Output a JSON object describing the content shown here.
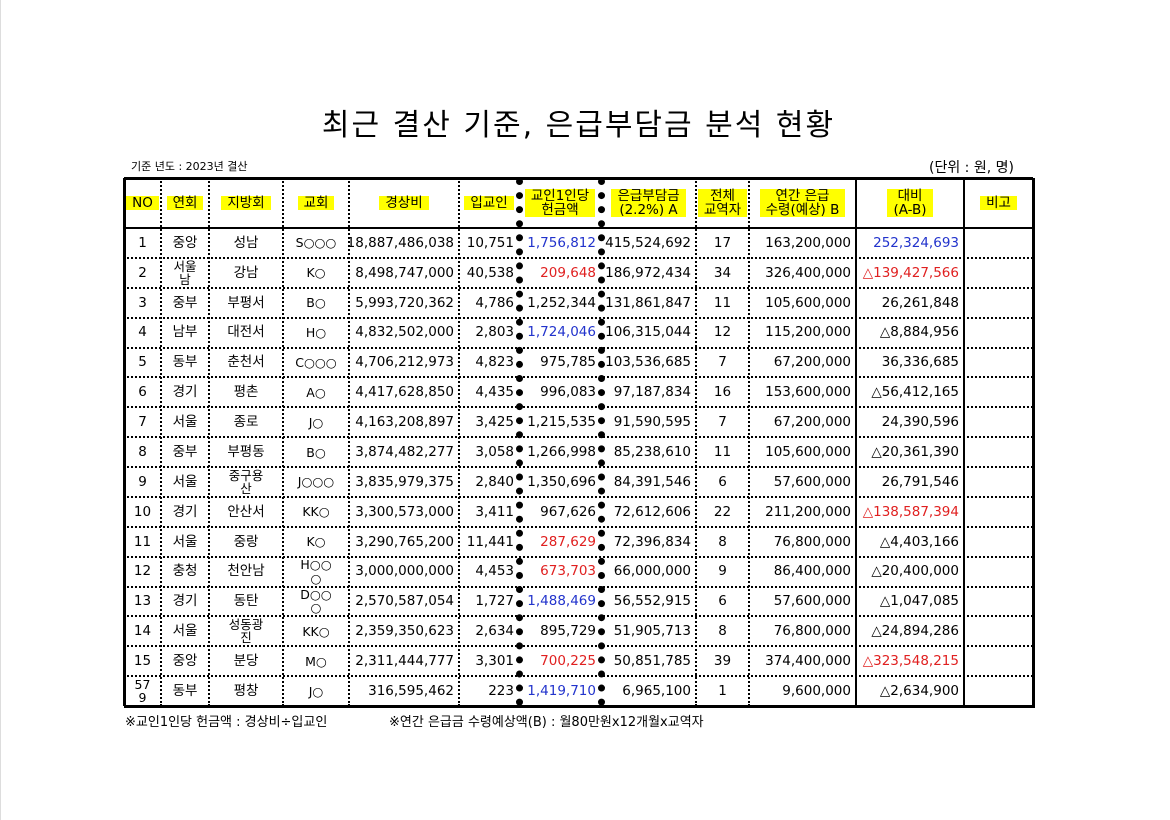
{
  "header": {
    "title": "최근 결산 기준, 은급부담금 분석 현황",
    "basis": "기준 년도 : 2023년 결산",
    "unit": "(단위 : 원, 명)"
  },
  "table": {
    "headers": [
      "NO",
      "연회",
      "지방회",
      "교회",
      "경상비",
      "입교인",
      "교인1인당\n헌금액",
      "은급부담금\n(2.2%) A",
      "전체\n교역자",
      "연간 은급\n수령(예상) B",
      "대비\n(A-B)",
      "비고"
    ],
    "rows": [
      {
        "cells": [
          "1",
          "중앙",
          "성남",
          "S○○○",
          "18,887,486,038",
          "10,751",
          "1,756,812",
          "415,524,692",
          "17",
          "163,200,000",
          "252,324,693"
        ],
        "colors": {
          "6": "#2233cc",
          "10": "#2233cc"
        }
      },
      {
        "cells": [
          "2",
          "서울\n남",
          "강남",
          "K○",
          "8,498,747,000",
          "40,538",
          "209,648",
          "186,972,434",
          "34",
          "326,400,000",
          "△139,427,566"
        ],
        "colors": {
          "6": "#e02020",
          "10": "#e02020"
        }
      },
      {
        "cells": [
          "3",
          "중부",
          "부평서",
          "B○",
          "5,993,720,362",
          "4,786",
          "1,252,344",
          "131,861,847",
          "11",
          "105,600,000",
          "26,261,848"
        ]
      },
      {
        "cells": [
          "4",
          "남부",
          "대전서",
          "H○",
          "4,832,502,000",
          "2,803",
          "1,724,046",
          "106,315,044",
          "12",
          "115,200,000",
          "△8,884,956"
        ],
        "colors": {
          "6": "#2233cc"
        }
      },
      {
        "cells": [
          "5",
          "동부",
          "춘천서",
          "C○○○",
          "4,706,212,973",
          "4,823",
          "975,785",
          "103,536,685",
          "7",
          "67,200,000",
          "36,336,685"
        ]
      },
      {
        "cells": [
          "6",
          "경기",
          "평촌",
          "A○",
          "4,417,628,850",
          "4,435",
          "996,083",
          "97,187,834",
          "16",
          "153,600,000",
          "△56,412,165"
        ]
      },
      {
        "cells": [
          "7",
          "서울",
          "종로",
          "J○",
          "4,163,208,897",
          "3,425",
          "1,215,535",
          "91,590,595",
          "7",
          "67,200,000",
          "24,390,596"
        ]
      },
      {
        "cells": [
          "8",
          "중부",
          "부평동",
          "B○",
          "3,874,482,277",
          "3,058",
          "1,266,998",
          "85,238,610",
          "11",
          "105,600,000",
          "△20,361,390"
        ]
      },
      {
        "cells": [
          "9",
          "서울",
          "중구용\n산",
          "J○○○",
          "3,835,979,375",
          "2,840",
          "1,350,696",
          "84,391,546",
          "6",
          "57,600,000",
          "26,791,546"
        ]
      },
      {
        "cells": [
          "10",
          "경기",
          "안산서",
          "KK○",
          "3,300,573,000",
          "3,411",
          "967,626",
          "72,612,606",
          "22",
          "211,200,000",
          "△138,587,394"
        ],
        "colors": {
          "10": "#e02020"
        }
      },
      {
        "cells": [
          "11",
          "서울",
          "중랑",
          "K○",
          "3,290,765,200",
          "11,441",
          "287,629",
          "72,396,834",
          "8",
          "76,800,000",
          "△4,403,166"
        ],
        "colors": {
          "6": "#e02020"
        }
      },
      {
        "cells": [
          "12",
          "충청",
          "천안남",
          "H○○\n○",
          "3,000,000,000",
          "4,453",
          "673,703",
          "66,000,000",
          "9",
          "86,400,000",
          "△20,400,000"
        ],
        "colors": {
          "6": "#e02020"
        }
      },
      {
        "cells": [
          "13",
          "경기",
          "동탄",
          "D○○\n○",
          "2,570,587,054",
          "1,727",
          "1,488,469",
          "56,552,915",
          "6",
          "57,600,000",
          "△1,047,085"
        ],
        "colors": {
          "6": "#2233cc"
        }
      },
      {
        "cells": [
          "14",
          "서울",
          "성동광\n진",
          "KK○",
          "2,359,350,623",
          "2,634",
          "895,729",
          "51,905,713",
          "8",
          "76,800,000",
          "△24,894,286"
        ]
      },
      {
        "cells": [
          "15",
          "중앙",
          "분당",
          "M○",
          "2,311,444,777",
          "3,301",
          "700,225",
          "50,851,785",
          "39",
          "374,400,000",
          "△323,548,215"
        ],
        "colors": {
          "6": "#e02020",
          "10": "#e02020"
        }
      },
      {
        "cells": [
          "57\n9",
          "동부",
          "평창",
          "J○",
          "316,595,462",
          "223",
          "1,419,710",
          "6,965,100",
          "1",
          "9,600,000",
          "△2,634,900"
        ],
        "colors": {
          "6": "#2233cc"
        }
      }
    ]
  },
  "notes": [
    "※교인1인당 헌금액 : 경상비÷입교인",
    "※연간 은급금 수령예상액(B) : 월80만원x12개월x교역자"
  ]
}
